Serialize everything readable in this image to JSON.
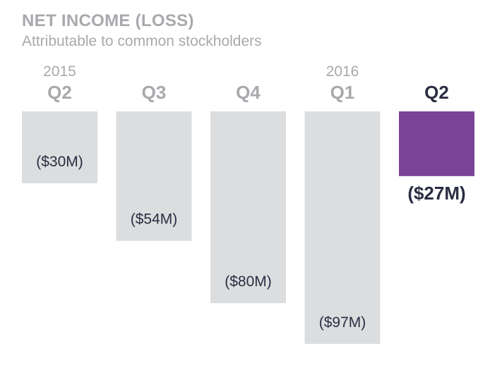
{
  "chart_data": {
    "type": "bar",
    "title": "NET INCOME (LOSS)",
    "subtitle": "Attributable to common stockholders",
    "year_labels": [
      {
        "category_index": 0,
        "text": "2015"
      },
      {
        "category_index": 3,
        "text": "2016"
      }
    ],
    "categories": [
      "Q2",
      "Q3",
      "Q4",
      "Q1",
      "Q2"
    ],
    "values": [
      -30,
      -54,
      -80,
      -97,
      -27
    ],
    "value_labels": [
      "($30M)",
      "($54M)",
      "($80M)",
      "($97M)",
      "($27M)"
    ],
    "unit": "$M",
    "highlight_index": 4,
    "colors": {
      "bar": "#dcddde",
      "highlight_bar": "#7b4397",
      "label": "#a7a9ac",
      "highlight_label": "#2b2d42",
      "value_text": "#2b2d42"
    },
    "grid": false,
    "legend": "none"
  }
}
